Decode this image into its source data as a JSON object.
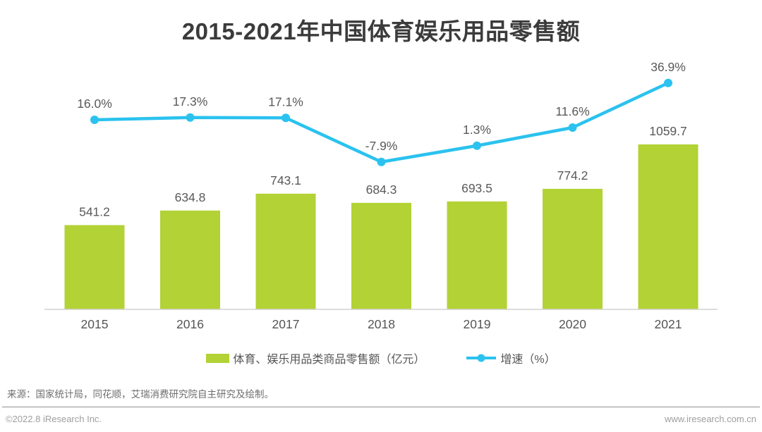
{
  "title": "2015-2021年中国体育娱乐用品零售额",
  "colors": {
    "bar": "#b2d235",
    "line": "#2bc2ef",
    "data_label": "#595959",
    "axis_line": "#d2d2d2",
    "axis_label": "#555555",
    "title": "#3b3b3b"
  },
  "chart_data": {
    "type": "bar",
    "categories": [
      "2015",
      "2016",
      "2017",
      "2018",
      "2019",
      "2020",
      "2021"
    ],
    "series": [
      {
        "name": "体育、娱乐用品类商品零售额（亿元）",
        "type": "bar",
        "values": [
          541.2,
          634.8,
          743.1,
          684.3,
          693.5,
          774.2,
          1059.7
        ],
        "labels": [
          "541.2",
          "634.8",
          "743.1",
          "684.3",
          "693.5",
          "774.2",
          "1059.7"
        ],
        "color": "#b2d235"
      },
      {
        "name": "增速（%）",
        "type": "line",
        "values": [
          16.0,
          17.3,
          17.1,
          -7.9,
          1.3,
          11.6,
          36.9
        ],
        "labels": [
          "16.0%",
          "17.3%",
          "17.1%",
          "-7.9%",
          "1.3%",
          "11.6%",
          "36.9%"
        ],
        "color": "#2bc2ef"
      }
    ],
    "title": "2015-2021年中国体育娱乐用品零售额",
    "xlabel": "",
    "ylabel": "",
    "grid": false,
    "y_axis_visible": false,
    "legend_position": "bottom"
  },
  "source": "来源：国家统计局，同花顺，艾瑞消费研究院自主研究及绘制。",
  "footer": {
    "left": "©2022.8 iResearch Inc.",
    "right": "www.iresearch.com.cn"
  }
}
